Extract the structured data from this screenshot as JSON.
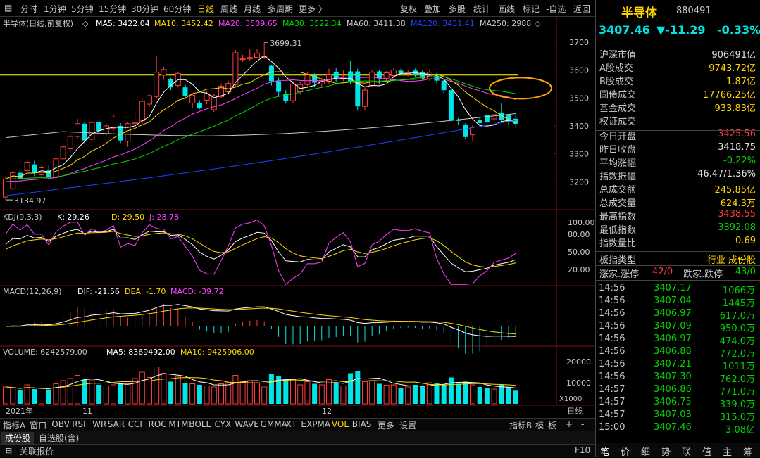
{
  "toolbar": {
    "periods": [
      "分时",
      "1分钟",
      "5分钟",
      "15分钟",
      "30分钟",
      "60分钟",
      "日线",
      "周线",
      "月线",
      "多周期",
      "更多 〉"
    ],
    "active_period": "日线",
    "tools": [
      "复权",
      "叠加",
      "多股",
      "统计",
      "画线",
      "标记",
      "-自选",
      "返回"
    ]
  },
  "main_header": {
    "name": "半导体(日线,前复权)",
    "ma5": "MA5: 3422.04",
    "ma10": "MA10: 3452.42",
    "ma20": "MA20: 3509.65",
    "ma30": "MA30: 3522.34",
    "ma60": "MA60: 3411.38",
    "ma120": "MA120: 3431.41",
    "ma250": "MA250: 2988"
  },
  "kdj_header": {
    "name": "KDJ(9,3,3)",
    "k": "K: 29.26",
    "d": "D: 29.50",
    "j": "J: 28.78"
  },
  "macd_header": {
    "name": "MACD(12,26,9)",
    "dif": "DIF: -21.56",
    "dea": "DEA: -1.70",
    "macd": "MACD: -39.72"
  },
  "vol_header": {
    "name": "VOLUME: 6242579.00",
    "ma5": "MA5: 8369492.00",
    "ma10": "MA10: 9425906.00"
  },
  "axes": {
    "price_ticks": [
      "3700",
      "3600",
      "3500",
      "3400",
      "3300",
      "3200"
    ],
    "kdj_ticks": [
      "100.00",
      "80.00",
      "50.00",
      "20.00"
    ],
    "vol_ticks": [
      "20000",
      "10000"
    ],
    "vol_unit": "X1000",
    "x_labels": [
      "2021年",
      "11",
      "12"
    ],
    "x_right": "日线"
  },
  "annotations": {
    "high": "3699.31",
    "low": "3134.97"
  },
  "chart_data": {
    "type": "candlestick",
    "title": "半导体(日线,前复权)",
    "y_range": [
      3100,
      3740
    ],
    "high_label": 3699.31,
    "low_label": 3134.97,
    "horizontal_line": 3583,
    "candles": [
      {
        "o": 3145,
        "c": 3210,
        "h": 3220,
        "l": 3134.97,
        "v": 8000
      },
      {
        "o": 3175,
        "c": 3232,
        "h": 3240,
        "l": 3168,
        "v": 7500
      },
      {
        "o": 3232,
        "c": 3212,
        "h": 3245,
        "l": 3200,
        "v": 6500
      },
      {
        "o": 3240,
        "c": 3270,
        "h": 3285,
        "l": 3230,
        "v": 9000
      },
      {
        "o": 3262,
        "c": 3232,
        "h": 3275,
        "l": 3220,
        "v": 7000
      },
      {
        "o": 3225,
        "c": 3250,
        "h": 3262,
        "l": 3215,
        "v": 6500
      },
      {
        "o": 3240,
        "c": 3215,
        "h": 3258,
        "l": 3208,
        "v": 6800
      },
      {
        "o": 3215,
        "c": 3282,
        "h": 3292,
        "l": 3208,
        "v": 9500
      },
      {
        "o": 3282,
        "c": 3325,
        "h": 3342,
        "l": 3275,
        "v": 11000
      },
      {
        "o": 3318,
        "c": 3362,
        "h": 3372,
        "l": 3308,
        "v": 12000
      },
      {
        "o": 3362,
        "c": 3408,
        "h": 3425,
        "l": 3352,
        "v": 13500
      },
      {
        "o": 3408,
        "c": 3348,
        "h": 3415,
        "l": 3335,
        "v": 11500
      },
      {
        "o": 3352,
        "c": 3412,
        "h": 3425,
        "l": 3340,
        "v": 11000
      },
      {
        "o": 3415,
        "c": 3382,
        "h": 3428,
        "l": 3370,
        "v": 9000
      },
      {
        "o": 3372,
        "c": 3400,
        "h": 3408,
        "l": 3362,
        "v": 8500
      },
      {
        "o": 3392,
        "c": 3432,
        "h": 3442,
        "l": 3382,
        "v": 9000
      },
      {
        "o": 3400,
        "c": 3348,
        "h": 3410,
        "l": 3338,
        "v": 10000
      },
      {
        "o": 3345,
        "c": 3408,
        "h": 3412,
        "l": 3325,
        "v": 9500
      },
      {
        "o": 3408,
        "c": 3412,
        "h": 3458,
        "l": 3395,
        "v": 12000
      },
      {
        "o": 3418,
        "c": 3488,
        "h": 3498,
        "l": 3408,
        "v": 15000
      },
      {
        "o": 3478,
        "c": 3508,
        "h": 3512,
        "l": 3468,
        "v": 12500
      },
      {
        "o": 3505,
        "c": 3592,
        "h": 3652,
        "l": 3498,
        "v": 17500
      },
      {
        "o": 3582,
        "c": 3602,
        "h": 3612,
        "l": 3565,
        "v": 14500
      },
      {
        "o": 3568,
        "c": 3538,
        "h": 3572,
        "l": 3528,
        "v": 10500
      },
      {
        "o": 3545,
        "c": 3588,
        "h": 3592,
        "l": 3538,
        "v": 13000
      },
      {
        "o": 3538,
        "c": 3508,
        "h": 3548,
        "l": 3495,
        "v": 10000
      },
      {
        "o": 3482,
        "c": 3510,
        "h": 3515,
        "l": 3465,
        "v": 9500
      },
      {
        "o": 3482,
        "c": 3465,
        "h": 3492,
        "l": 3460,
        "v": 9000
      },
      {
        "o": 3492,
        "c": 3515,
        "h": 3524,
        "l": 3478,
        "v": 8500
      },
      {
        "o": 3458,
        "c": 3508,
        "h": 3515,
        "l": 3450,
        "v": 8000
      },
      {
        "o": 3505,
        "c": 3542,
        "h": 3552,
        "l": 3500,
        "v": 9500
      },
      {
        "o": 3522,
        "c": 3552,
        "h": 3562,
        "l": 3515,
        "v": 10000
      },
      {
        "o": 3548,
        "c": 3662,
        "h": 3672,
        "l": 3540,
        "v": 13500
      },
      {
        "o": 3638,
        "c": 3640,
        "h": 3655,
        "l": 3630,
        "v": 10500
      },
      {
        "o": 3640,
        "c": 3645,
        "h": 3675,
        "l": 3635,
        "v": 11000
      },
      {
        "o": 3645,
        "c": 3660,
        "h": 3675,
        "l": 3645,
        "v": 10000
      },
      {
        "o": 3648,
        "c": 3648,
        "h": 3699.31,
        "l": 3640,
        "v": 8000
      },
      {
        "o": 3615,
        "c": 3560,
        "h": 3618,
        "l": 3545,
        "v": 14000
      },
      {
        "o": 3560,
        "c": 3522,
        "h": 3572,
        "l": 3508,
        "v": 13000
      },
      {
        "o": 3515,
        "c": 3490,
        "h": 3528,
        "l": 3480,
        "v": 12000
      },
      {
        "o": 3490,
        "c": 3550,
        "h": 3560,
        "l": 3482,
        "v": 11500
      },
      {
        "o": 3522,
        "c": 3548,
        "h": 3558,
        "l": 3512,
        "v": 9000
      },
      {
        "o": 3548,
        "c": 3582,
        "h": 3592,
        "l": 3540,
        "v": 10500
      },
      {
        "o": 3582,
        "c": 3555,
        "h": 3588,
        "l": 3540,
        "v": 9500
      },
      {
        "o": 3550,
        "c": 3562,
        "h": 3572,
        "l": 3538,
        "v": 9000
      },
      {
        "o": 3560,
        "c": 3585,
        "h": 3605,
        "l": 3550,
        "v": 11500
      },
      {
        "o": 3592,
        "c": 3568,
        "h": 3608,
        "l": 3558,
        "v": 10000
      },
      {
        "o": 3570,
        "c": 3575,
        "h": 3598,
        "l": 3560,
        "v": 8500
      },
      {
        "o": 3595,
        "c": 3558,
        "h": 3632,
        "l": 3548,
        "v": 14500
      },
      {
        "o": 3595,
        "c": 3470,
        "h": 3605,
        "l": 3455,
        "v": 15500
      },
      {
        "o": 3470,
        "c": 3528,
        "h": 3538,
        "l": 3455,
        "v": 10500
      },
      {
        "o": 3545,
        "c": 3592,
        "h": 3600,
        "l": 3540,
        "v": 11000
      },
      {
        "o": 3595,
        "c": 3570,
        "h": 3602,
        "l": 3548,
        "v": 9500
      },
      {
        "o": 3570,
        "c": 3590,
        "h": 3596,
        "l": 3562,
        "v": 8800
      },
      {
        "o": 3580,
        "c": 3600,
        "h": 3608,
        "l": 3572,
        "v": 9000
      },
      {
        "o": 3598,
        "c": 3588,
        "h": 3605,
        "l": 3585,
        "v": 7500
      },
      {
        "o": 3588,
        "c": 3592,
        "h": 3600,
        "l": 3578,
        "v": 8000
      },
      {
        "o": 3598,
        "c": 3582,
        "h": 3605,
        "l": 3575,
        "v": 9000
      },
      {
        "o": 3592,
        "c": 3572,
        "h": 3598,
        "l": 3565,
        "v": 8500
      },
      {
        "o": 3568,
        "c": 3592,
        "h": 3600,
        "l": 3562,
        "v": 10000
      },
      {
        "o": 3578,
        "c": 3562,
        "h": 3590,
        "l": 3552,
        "v": 9800
      },
      {
        "o": 3562,
        "c": 3528,
        "h": 3568,
        "l": 3512,
        "v": 9000
      },
      {
        "o": 3528,
        "c": 3422,
        "h": 3535,
        "l": 3415,
        "v": 12500
      },
      {
        "o": 3422,
        "c": 3418,
        "h": 3428,
        "l": 3405,
        "v": 9500
      },
      {
        "o": 3405,
        "c": 3360,
        "h": 3410,
        "l": 3352,
        "v": 10500
      },
      {
        "o": 3368,
        "c": 3395,
        "h": 3405,
        "l": 3345,
        "v": 9000
      },
      {
        "o": 3422,
        "c": 3410,
        "h": 3432,
        "l": 3405,
        "v": 8000
      },
      {
        "o": 3438,
        "c": 3412,
        "h": 3445,
        "l": 3405,
        "v": 7500
      },
      {
        "o": 3425,
        "c": 3440,
        "h": 3448,
        "l": 3415,
        "v": 7000
      },
      {
        "o": 3448,
        "c": 3422,
        "h": 3482,
        "l": 3415,
        "v": 9000
      },
      {
        "o": 3438,
        "c": 3415,
        "h": 3442,
        "l": 3405,
        "v": 8000
      },
      {
        "o": 3425.56,
        "c": 3407.46,
        "h": 3438.55,
        "l": 3392.08,
        "v": 6243
      }
    ]
  },
  "quote": {
    "name": "半导体",
    "code": "880491",
    "price": "3407.46",
    "change": "▼-11.29",
    "pct": "-0.33%",
    "stats": [
      {
        "label": "沪深市值",
        "value": "906491亿",
        "color": "white"
      },
      {
        "label": "A股成交",
        "value": "9743.72亿",
        "color": "yellow"
      },
      {
        "label": "B股成交",
        "value": "1.87亿",
        "color": "yellow"
      },
      {
        "label": "国债成交",
        "value": "17766.25亿",
        "color": "yellow"
      },
      {
        "label": "基金成交",
        "value": "933.83亿",
        "color": "yellow"
      },
      {
        "label": "权证成交",
        "value": "",
        "color": "yellow"
      },
      {
        "label": "今日开盘",
        "value": "3425.56",
        "color": "red"
      },
      {
        "label": "昨日收盘",
        "value": "3418.75",
        "color": "white"
      },
      {
        "label": "平均涨幅",
        "value": "-0.22%",
        "color": "green"
      },
      {
        "label": "指数振幅",
        "value": "46.47/1.36%",
        "color": "white"
      },
      {
        "label": "总成交额",
        "value": "245.85亿",
        "color": "yellow"
      },
      {
        "label": "总成交量",
        "value": "624.3万",
        "color": "yellow"
      },
      {
        "label": "最高指数",
        "value": "3438.55",
        "color": "red"
      },
      {
        "label": "最低指数",
        "value": "3392.08",
        "color": "green"
      },
      {
        "label": "指数量比",
        "value": "0.69",
        "color": "yellow"
      }
    ],
    "board_type_label": "板指类型",
    "board_type_value": "行业 成份股",
    "updown_label": "涨家.涨停",
    "updown_value": "42/0",
    "downs_label": "跌家.跌停",
    "downs_value": "43/0",
    "trades": [
      {
        "t": "14:56",
        "p": "3407.17",
        "q": "1066万"
      },
      {
        "t": "14:56",
        "p": "3407.04",
        "q": "1445万"
      },
      {
        "t": "14:56",
        "p": "3406.97",
        "q": "617.0万"
      },
      {
        "t": "14:56",
        "p": "3407.09",
        "q": "950.0万"
      },
      {
        "t": "14:56",
        "p": "3406.97",
        "q": "474.0万"
      },
      {
        "t": "14:56",
        "p": "3406.88",
        "q": "772.0万"
      },
      {
        "t": "14:56",
        "p": "3407.21",
        "q": "1011万"
      },
      {
        "t": "14:56",
        "p": "3407.30",
        "q": "762.0万"
      },
      {
        "t": "14:57",
        "p": "3406.86",
        "q": "771.0万"
      },
      {
        "t": "14:57",
        "p": "3406.75",
        "q": "339.0万"
      },
      {
        "t": "14:57",
        "p": "3407.03",
        "q": "315.0万"
      },
      {
        "t": "15:00",
        "p": "3407.46",
        "q": "3.08亿"
      }
    ],
    "tabs": [
      "笔",
      "价",
      "细",
      "势",
      "联",
      "值",
      "主",
      "筹"
    ]
  },
  "indicator_bar": {
    "items": [
      "指标A",
      "窗口",
      "OBV",
      "RSI",
      "WR",
      "SAR",
      "CCI",
      "ROC",
      "MTM",
      "BOLL",
      "CYX",
      "WAVE",
      "GMMA",
      "XT",
      "EXPMA",
      "VOL",
      "BIAS",
      "更多",
      "设置"
    ],
    "active": "VOL",
    "right": [
      "指标B",
      "模",
      "板",
      "+",
      "-"
    ]
  },
  "bottom_tabs": [
    "成份股",
    "自选股(含)"
  ],
  "status": {
    "label": "关联报价",
    "key": "F10"
  },
  "colors": {
    "up": "#ff3c3c",
    "down": "#00e5e5",
    "ma5": "#ffffff",
    "ma10": "#ffd800",
    "ma20": "#ff40ff",
    "ma30": "#00d500",
    "ma60": "#c8c8c8",
    "ma120": "#2040ff",
    "hline": "#ffff00",
    "circle": "#ffa500"
  }
}
